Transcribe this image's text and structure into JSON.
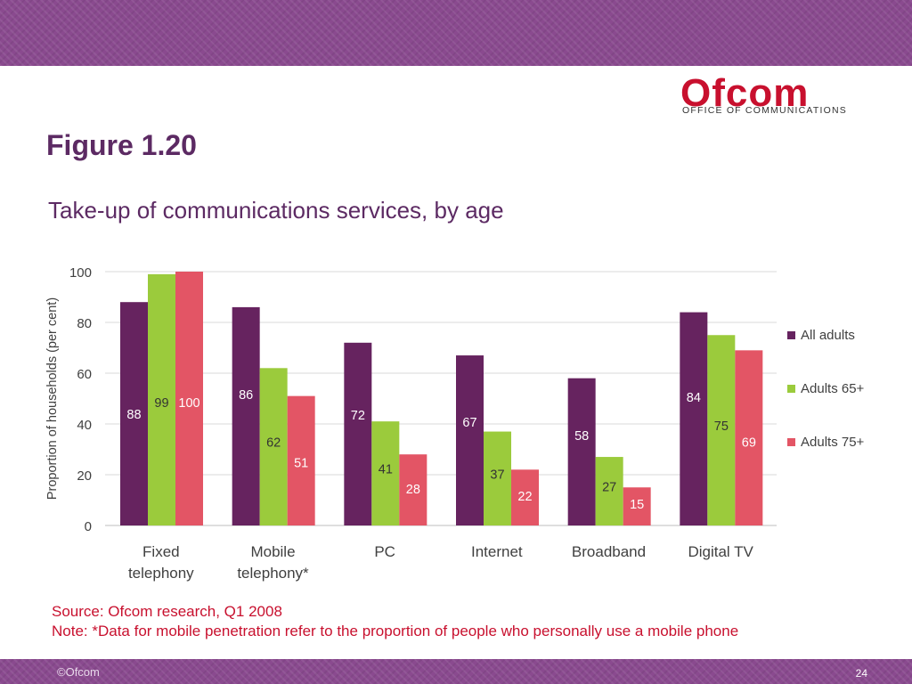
{
  "slide": {
    "figure_label": "Figure 1.20",
    "source": "Source: Ofcom research, Q1 2008",
    "note": "Note: *Data for mobile penetration refer to the proportion of people who personally use a mobile phone",
    "footer": "©Ofcom",
    "page_number": "24"
  },
  "logo": {
    "wordmark": "Ofcom",
    "subtitle": "OFFICE OF COMMUNICATIONS"
  },
  "chart_data": {
    "type": "bar",
    "title": "Take-up of communications services, by age",
    "ylabel": "Proportion of households (per cent)",
    "xlabel": "",
    "ylim": [
      0,
      100
    ],
    "yticks": [
      0,
      20,
      40,
      60,
      80,
      100
    ],
    "grid": true,
    "legend_position": "right",
    "categories": [
      [
        "Fixed",
        "telephony"
      ],
      [
        "Mobile",
        "telephony*"
      ],
      [
        "PC"
      ],
      [
        "Internet"
      ],
      [
        "Broadband"
      ],
      [
        "Digital TV"
      ]
    ],
    "series": [
      {
        "name": "All adults",
        "color": "#66235f",
        "values": [
          88,
          86,
          72,
          67,
          58,
          84
        ]
      },
      {
        "name": "Adults 65+",
        "color": "#9bcb3c",
        "values": [
          99,
          62,
          41,
          37,
          27,
          75
        ]
      },
      {
        "name": "Adults 75+",
        "color": "#e35565",
        "values": [
          100,
          51,
          28,
          22,
          15,
          69
        ]
      }
    ]
  }
}
